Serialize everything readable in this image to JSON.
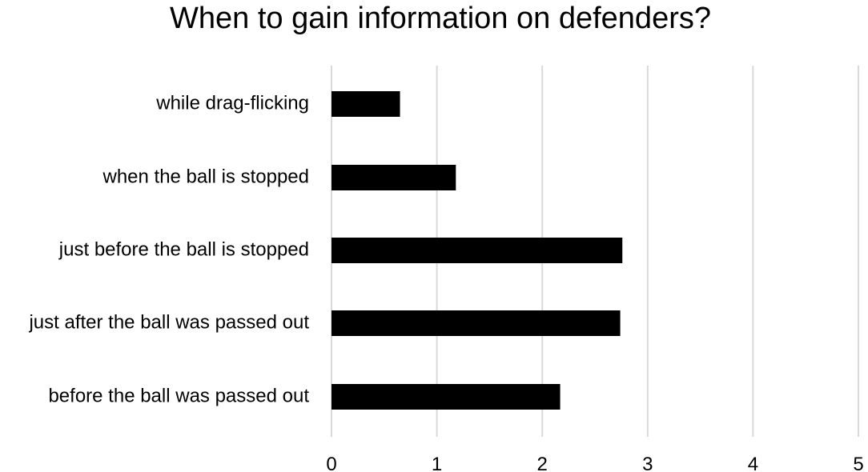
{
  "chart_data": {
    "type": "bar",
    "orientation": "horizontal",
    "title": "When to gain information on defenders?",
    "xlabel": "",
    "ylabel": "",
    "categories": [
      "while drag-flicking",
      "when the ball is stopped",
      "just before the ball is stopped",
      "just after the ball was passed out",
      "before the ball was passed out"
    ],
    "values": [
      0.65,
      1.18,
      2.76,
      2.74,
      2.17
    ],
    "xlim": [
      0,
      5
    ],
    "xticks": [
      "0",
      "1",
      "2",
      "3",
      "4",
      "5"
    ],
    "grid": true,
    "legend": "none",
    "bar_color": "#000000",
    "grid_color": "#d9d9d9"
  }
}
